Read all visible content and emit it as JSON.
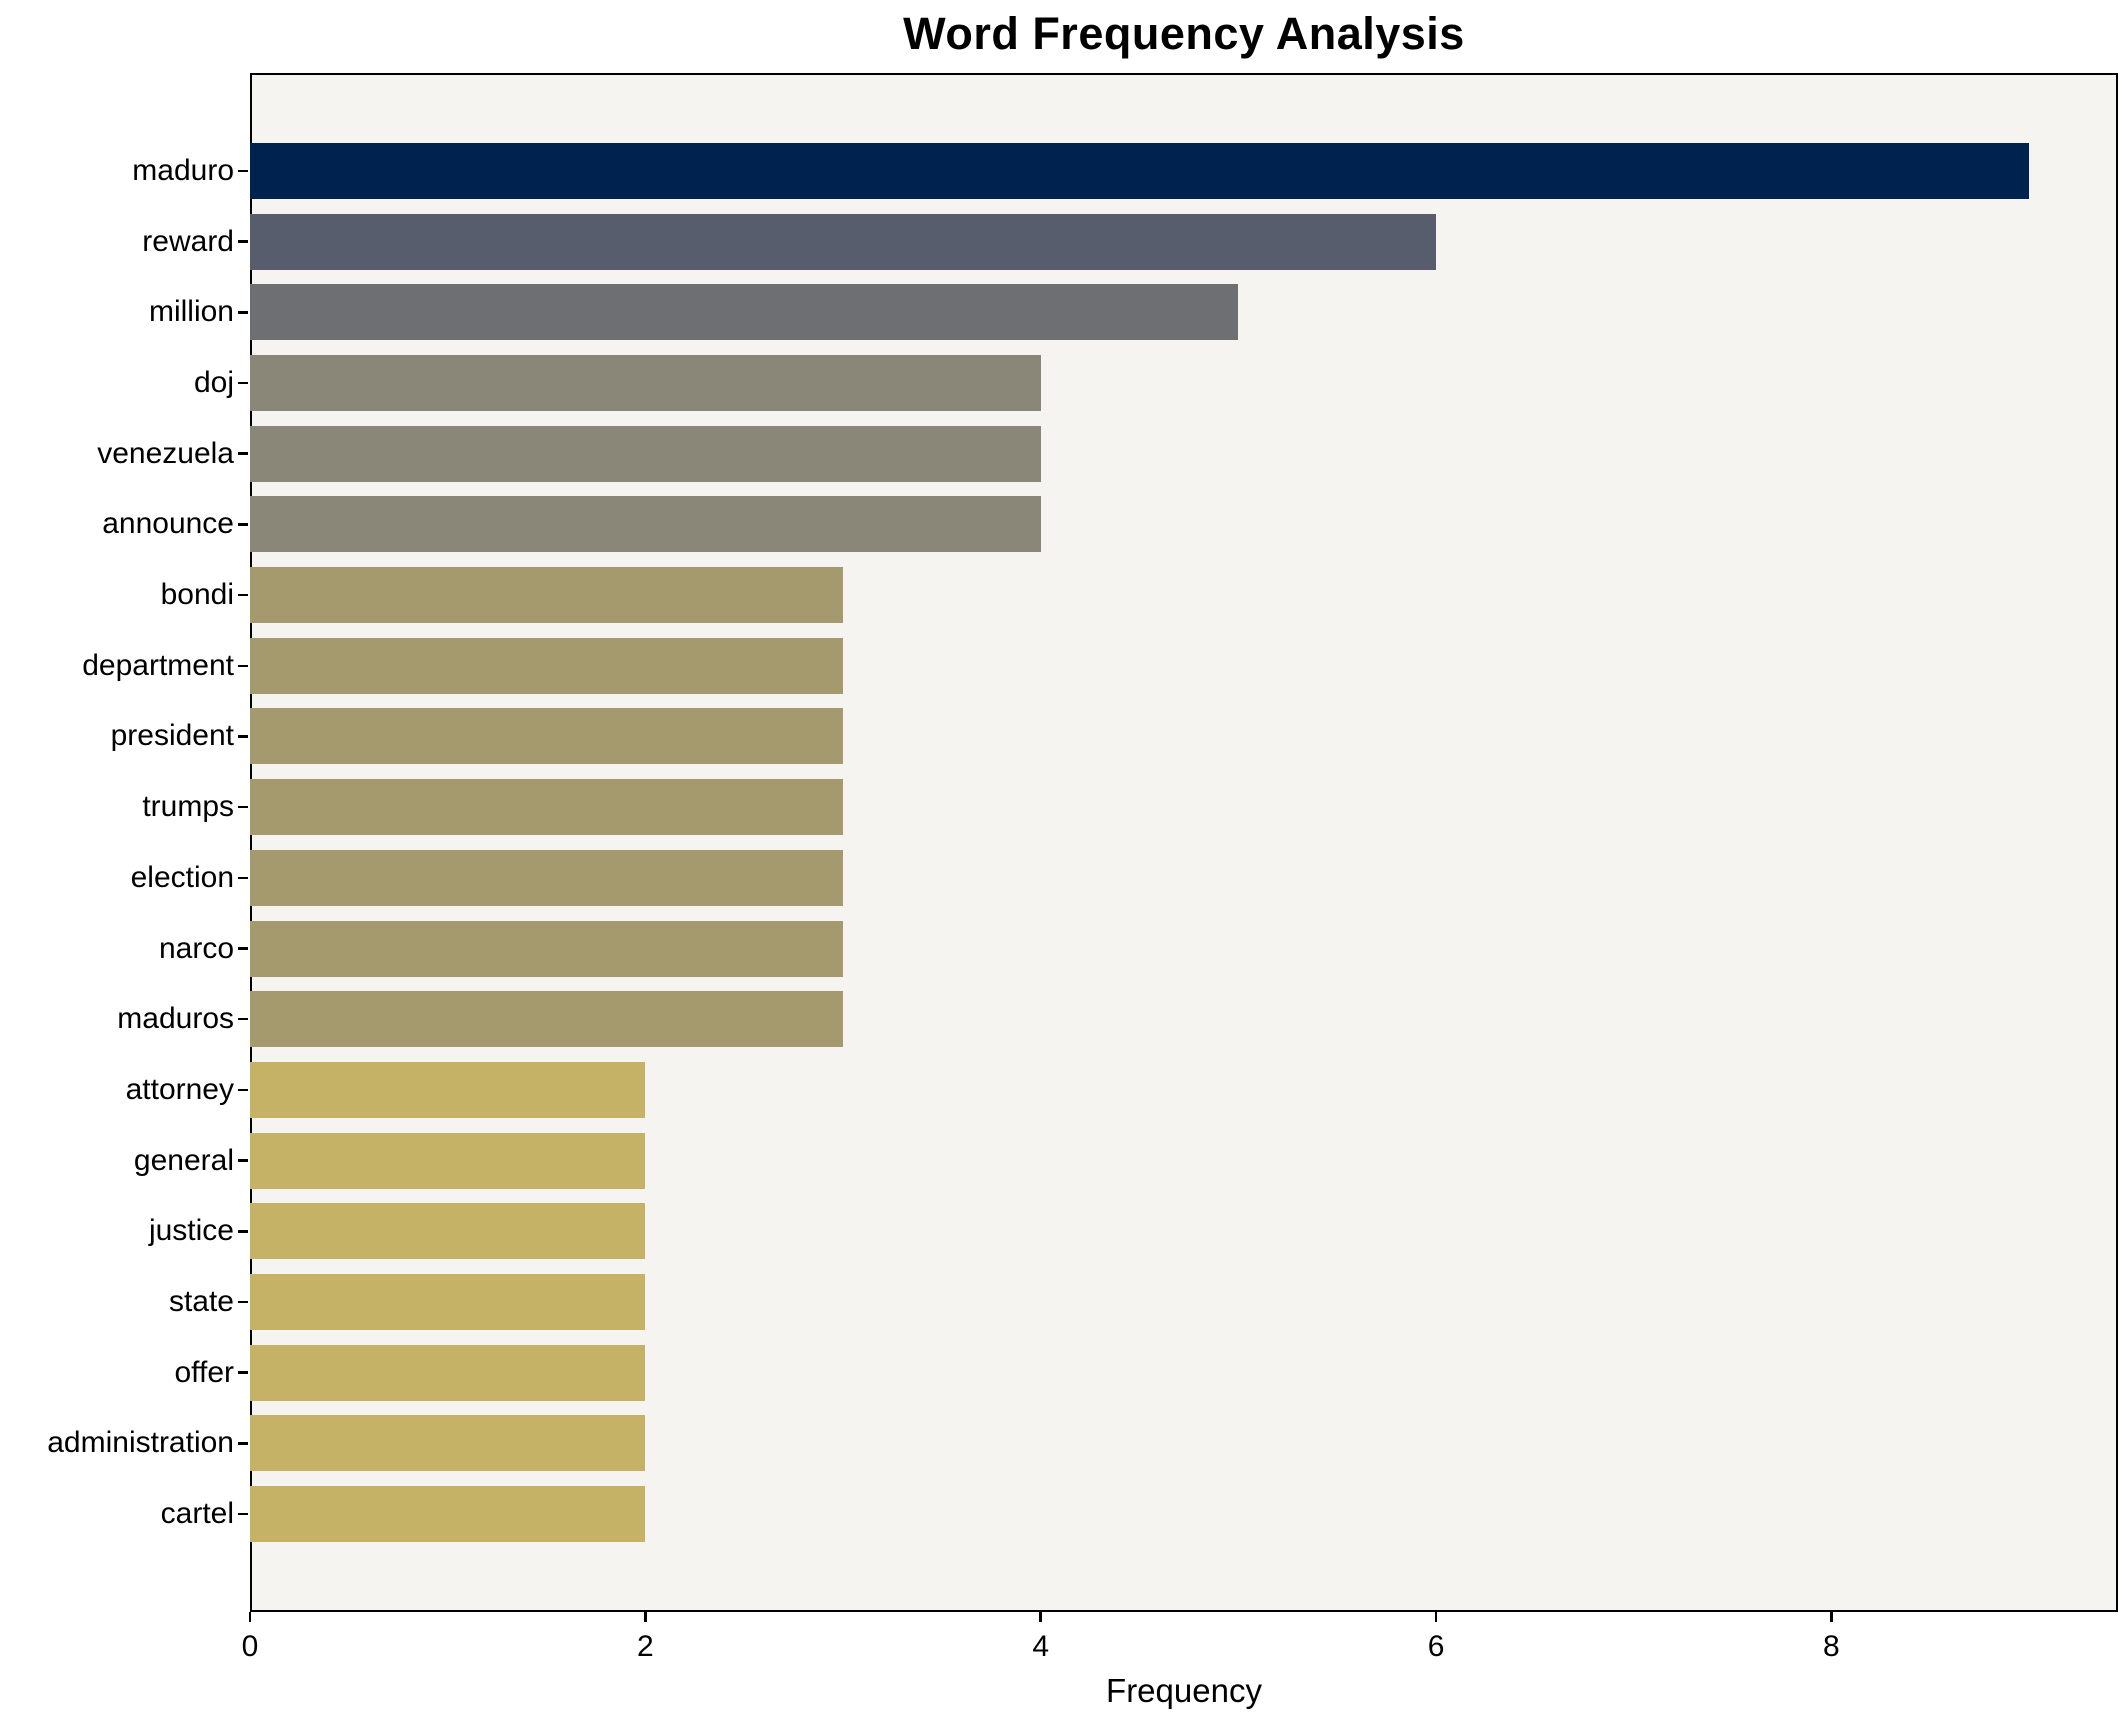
{
  "title": "Word Frequency Analysis",
  "chart_data": {
    "type": "bar",
    "orientation": "horizontal",
    "title": "Word Frequency Analysis",
    "xlabel": "Frequency",
    "ylabel": "",
    "categories": [
      "maduro",
      "reward",
      "million",
      "doj",
      "venezuela",
      "announce",
      "bondi",
      "department",
      "president",
      "trumps",
      "election",
      "narco",
      "maduros",
      "attorney",
      "general",
      "justice",
      "state",
      "offer",
      "administration",
      "cartel"
    ],
    "values": [
      9,
      6,
      5,
      4,
      4,
      4,
      3,
      3,
      3,
      3,
      3,
      3,
      3,
      2,
      2,
      2,
      2,
      2,
      2,
      2
    ],
    "bar_colors": [
      "#00224e",
      "#575d6d",
      "#6e6f72",
      "#8a8778",
      "#8a8778",
      "#8a8778",
      "#a59a6d",
      "#a59a6d",
      "#a59a6d",
      "#a59a6d",
      "#a59a6d",
      "#a59a6d",
      "#a59a6d",
      "#c5b267",
      "#c5b267",
      "#c5b267",
      "#c5b267",
      "#c5b267",
      "#c5b267",
      "#c5b267"
    ],
    "x_ticks": [
      "0",
      "2",
      "4",
      "6",
      "8"
    ],
    "x_tick_values": [
      0,
      2,
      4,
      6,
      8
    ],
    "xlim": [
      0,
      9.45
    ],
    "grid": false,
    "legend_position": "none",
    "plot_bg_color": "#f5f4f1",
    "outer_bg_color": "#ffffff",
    "frame_color": "#000000"
  }
}
